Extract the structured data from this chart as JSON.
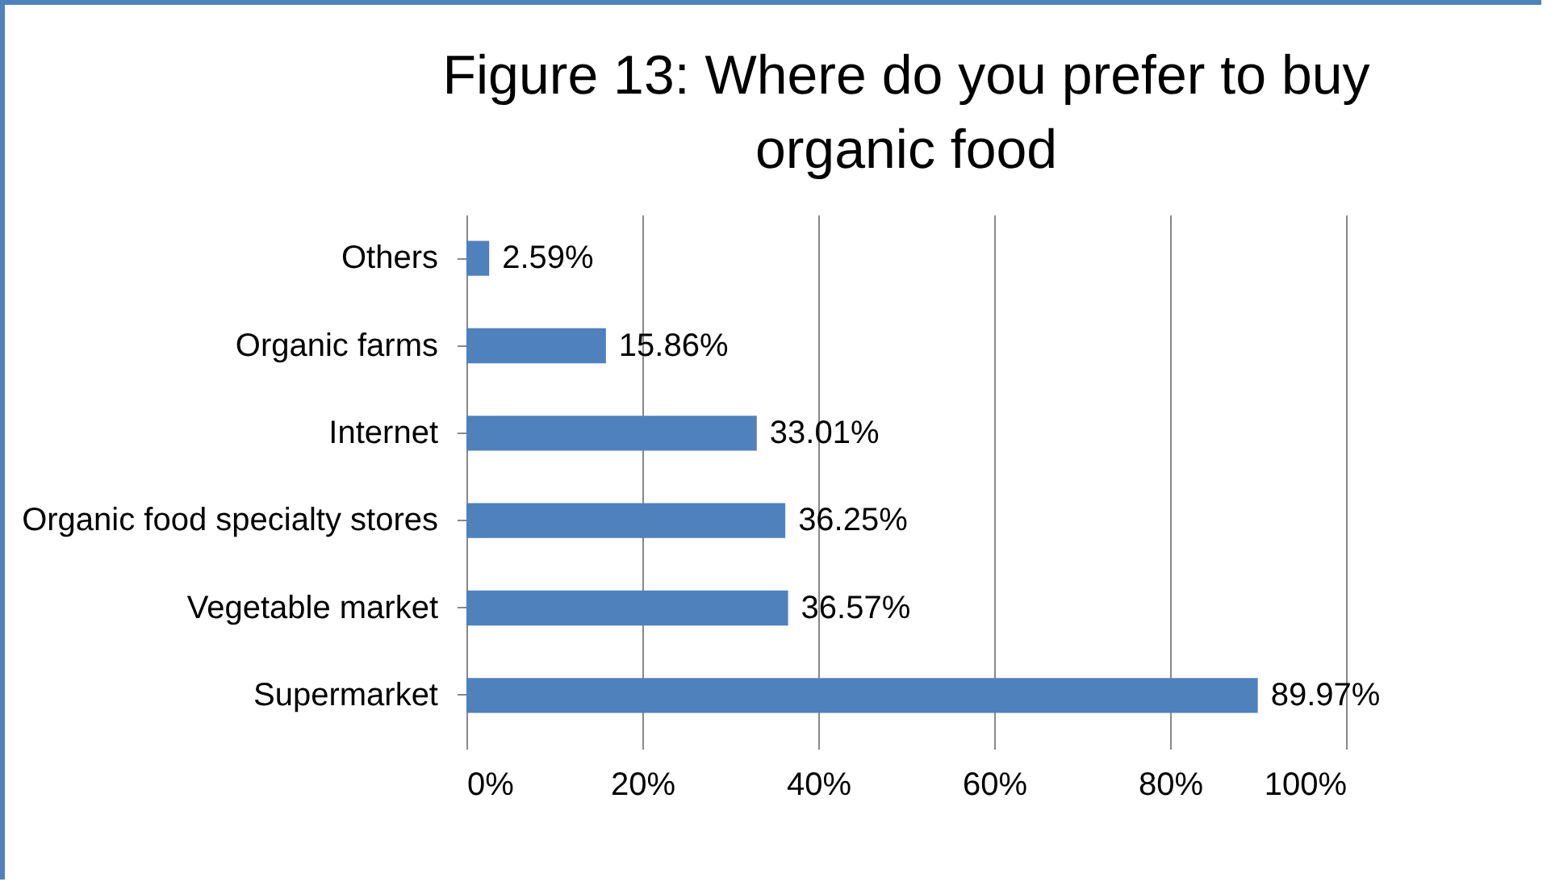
{
  "chart_data": {
    "type": "bar",
    "orientation": "horizontal",
    "title": "Figure 13: Where do you prefer to buy organic food",
    "categories": [
      "Others",
      "Organic farms",
      "Internet",
      "Organic food specialty stores",
      "Vegetable market",
      "Supermarket"
    ],
    "values": [
      2.59,
      15.86,
      33.01,
      36.25,
      36.57,
      89.97
    ],
    "value_labels": [
      "2.59%",
      "15.86%",
      "33.01%",
      "36.25%",
      "36.57%",
      "89.97%"
    ],
    "color": "#4f81bd",
    "xlim": [
      0,
      100
    ],
    "xticks": [
      {
        "value": 0,
        "label": "0%"
      },
      {
        "value": 20,
        "label": "20%"
      },
      {
        "value": 40,
        "label": "40%"
      },
      {
        "value": 60,
        "label": "60%"
      },
      {
        "value": 80,
        "label": "80%"
      },
      {
        "value": 100,
        "label": "100%"
      }
    ],
    "grid": "x"
  }
}
